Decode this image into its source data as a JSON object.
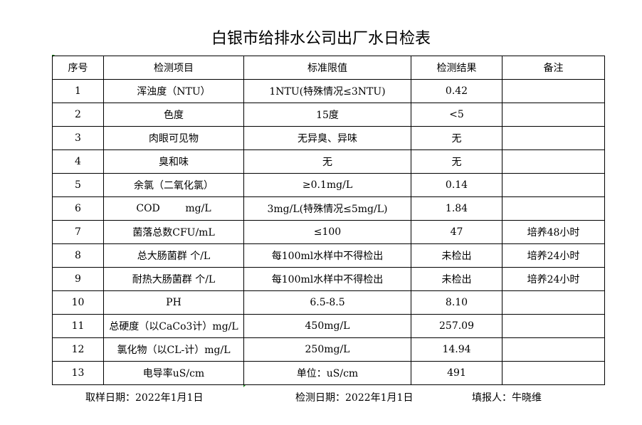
{
  "title": "白银市给排水公司出厂水日检表",
  "headers": [
    "序号",
    "检测项目",
    "标准限值",
    "检测结果",
    "备注"
  ],
  "rows": [
    [
      "1",
      "浑浊度（NTU）",
      "1NTU(特殊情况≤3NTU)",
      "0.42",
      ""
    ],
    [
      "2",
      "色度",
      "15度",
      "<5",
      ""
    ],
    [
      "3",
      "肉眼可见物",
      "无异臭、异味",
      "无",
      ""
    ],
    [
      "4",
      "臭和味",
      "无",
      "无",
      ""
    ],
    [
      "5",
      "余氯（二氧化氯）",
      "≥0.1mg/L",
      "0.14",
      ""
    ],
    [
      "6",
      "COD        mg/L",
      "3mg/L(特殊情况≤5mg/L)",
      "1.84",
      ""
    ],
    [
      "7",
      "菌落总数CFU/mL",
      "≤100",
      "47",
      "培养48小时"
    ],
    [
      "8",
      "总大肠菌群 个/L",
      "每100ml水样中不得检出",
      "未检出",
      "培养24小时"
    ],
    [
      "9",
      "耐热大肠菌群 个/L",
      "每100ml水样中不得检出",
      "未检出",
      "培养24小时"
    ],
    [
      "10",
      "PH",
      "6.5-8.5",
      "8.10",
      ""
    ],
    [
      "11",
      "总硬度（以CaCo3计）mg/L",
      "450mg/L",
      "257.09",
      ""
    ],
    [
      "12",
      "氯化物（以CL-计）mg/L",
      "250mg/L",
      "14.94",
      ""
    ],
    [
      "13",
      "电导率uS/cm",
      "单位：uS/cm",
      "491",
      ""
    ]
  ],
  "footer": {
    "sample_date": "取样日期：2022年1月1日",
    "test_date": "检测日期：2022年1月1日",
    "reporter": "填报人：牛晓维"
  }
}
